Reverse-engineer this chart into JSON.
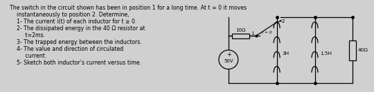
{
  "bg_color": "#d0d0d0",
  "text_color": "#000000",
  "title_line1": "The switch in the circuit shown has been in position 1 for a long time. At t = 0 it moves",
  "title_line2": "    instantaneously to position 2. Determine,",
  "items": [
    [
      "    1-",
      " The current i(t) of each inductor for t ≥ 0."
    ],
    [
      "    2-",
      " The dissipated energy in the 40 Ω resistor at"
    ],
    [
      "       ",
      " t=2ms."
    ],
    [
      "    3-",
      " The trapped energy between the inductors."
    ],
    [
      "    4-",
      " The value and direction of circulated"
    ],
    [
      "       ",
      " current."
    ],
    [
      "    5-",
      " Sketch both inductor’s current versus time."
    ]
  ],
  "circuit": {
    "vs_label": "50V",
    "r1_label": "10Ω",
    "ind1_label": "3H",
    "ind2_label": "1.5H",
    "r2_label": "40Ω",
    "sw_label": "t = 0"
  },
  "lw": 0.9
}
